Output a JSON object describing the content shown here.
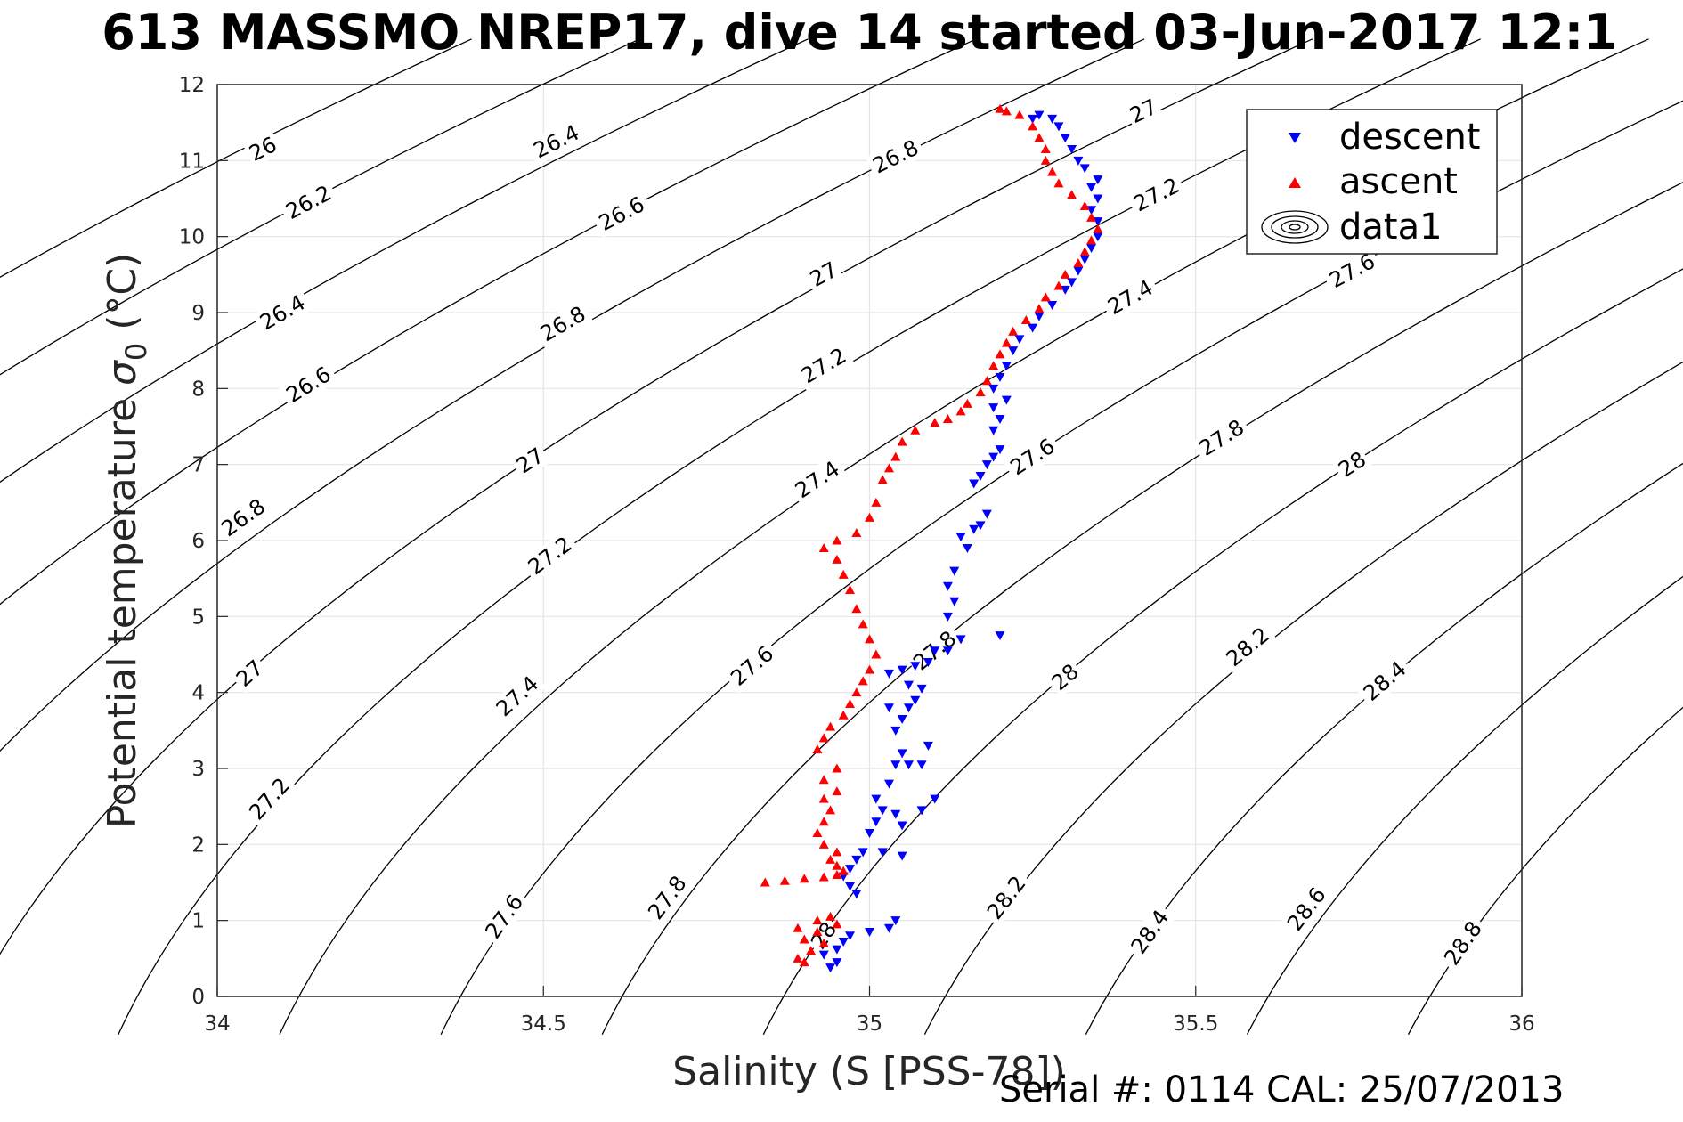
{
  "title": "613 MASSMO NREP17, dive 14 started 03-Jun-2017 12:1",
  "footer": "Serial #: 0114  CAL: 25/07/2013",
  "chart_data": {
    "type": "scatter",
    "xlabel": "Salinity (S [PSS-78])",
    "ylabel_main": "Potential temperature ",
    "ylabel_sigma": "σ",
    "ylabel_sub": "0",
    "ylabel_tail": " (°C)",
    "xlim": [
      34,
      36
    ],
    "ylim": [
      0,
      12
    ],
    "xticks": [
      "34",
      "34.5",
      "35",
      "35.5",
      "36"
    ],
    "yticks": [
      "0",
      "1",
      "2",
      "3",
      "4",
      "5",
      "6",
      "7",
      "8",
      "9",
      "10",
      "11",
      "12"
    ],
    "grid": true,
    "legend_position": "top-right",
    "legend": [
      {
        "label": "descent",
        "color": "#0000ff",
        "marker": "triangle-down"
      },
      {
        "label": "ascent",
        "color": "#ff0000",
        "marker": "triangle-up"
      },
      {
        "label": "data1",
        "color": "#000000",
        "marker": "contour"
      }
    ],
    "isopycnal_labels": [
      {
        "value": "26",
        "s": 34.07,
        "t": 11.15
      },
      {
        "value": "26.2",
        "s": 34.14,
        "t": 10.45
      },
      {
        "value": "26.4",
        "s": 34.52,
        "t": 11.25
      },
      {
        "value": "26.4",
        "s": 34.1,
        "t": 9.0
      },
      {
        "value": "26.6",
        "s": 34.14,
        "t": 8.05
      },
      {
        "value": "26.6",
        "s": 34.62,
        "t": 10.3
      },
      {
        "value": "26.8",
        "s": 34.53,
        "t": 8.85
      },
      {
        "value": "26.8",
        "s": 34.04,
        "t": 6.3
      },
      {
        "value": "26.8",
        "s": 35.04,
        "t": 11.05
      },
      {
        "value": "27",
        "s": 34.48,
        "t": 7.05
      },
      {
        "value": "27",
        "s": 34.05,
        "t": 4.25
      },
      {
        "value": "27",
        "s": 34.93,
        "t": 9.5
      },
      {
        "value": "27",
        "s": 35.42,
        "t": 11.65
      },
      {
        "value": "27.2",
        "s": 34.51,
        "t": 5.8
      },
      {
        "value": "27.2",
        "s": 34.93,
        "t": 8.3
      },
      {
        "value": "27.2",
        "s": 35.44,
        "t": 10.55
      },
      {
        "value": "27.2",
        "s": 34.08,
        "t": 2.6
      },
      {
        "value": "27.4",
        "s": 34.46,
        "t": 3.95
      },
      {
        "value": "27.4",
        "s": 34.92,
        "t": 6.8
      },
      {
        "value": "27.4",
        "s": 35.4,
        "t": 9.2
      },
      {
        "value": "27.6",
        "s": 34.44,
        "t": 1.05
      },
      {
        "value": "27.6",
        "s": 34.82,
        "t": 4.35
      },
      {
        "value": "27.6",
        "s": 35.25,
        "t": 7.1
      },
      {
        "value": "27.6",
        "s": 35.74,
        "t": 9.55
      },
      {
        "value": "27.8",
        "s": 34.69,
        "t": 1.3
      },
      {
        "value": "27.8",
        "s": 35.1,
        "t": 4.55
      },
      {
        "value": "27.8",
        "s": 35.54,
        "t": 7.35
      },
      {
        "value": "28",
        "s": 34.93,
        "t": 0.8
      },
      {
        "value": "28",
        "s": 35.3,
        "t": 4.2
      },
      {
        "value": "28",
        "s": 35.74,
        "t": 7.0
      },
      {
        "value": "28.2",
        "s": 35.21,
        "t": 1.3
      },
      {
        "value": "28.2",
        "s": 35.58,
        "t": 4.6
      },
      {
        "value": "28.4",
        "s": 35.43,
        "t": 0.85
      },
      {
        "value": "28.4",
        "s": 35.79,
        "t": 4.15
      },
      {
        "value": "28.6",
        "s": 35.67,
        "t": 1.15
      },
      {
        "value": "28.8",
        "s": 35.91,
        "t": 0.7
      }
    ],
    "series": [
      {
        "name": "descent",
        "color": "#0000ff",
        "points": [
          [
            34.94,
            0.38
          ],
          [
            34.95,
            0.45
          ],
          [
            34.93,
            0.55
          ],
          [
            34.95,
            0.62
          ],
          [
            34.96,
            0.72
          ],
          [
            34.97,
            0.8
          ],
          [
            35.0,
            0.85
          ],
          [
            35.03,
            0.9
          ],
          [
            35.04,
            1.0
          ],
          [
            34.98,
            1.35
          ],
          [
            34.97,
            1.45
          ],
          [
            34.96,
            1.58
          ],
          [
            34.97,
            1.68
          ],
          [
            34.98,
            1.8
          ],
          [
            34.99,
            1.9
          ],
          [
            35.02,
            1.9
          ],
          [
            35.05,
            1.85
          ],
          [
            35.0,
            2.15
          ],
          [
            35.01,
            2.3
          ],
          [
            35.02,
            2.45
          ],
          [
            35.01,
            2.6
          ],
          [
            35.04,
            2.4
          ],
          [
            35.05,
            2.25
          ],
          [
            35.08,
            2.45
          ],
          [
            35.1,
            2.6
          ],
          [
            35.03,
            2.8
          ],
          [
            35.04,
            3.05
          ],
          [
            35.06,
            3.05
          ],
          [
            35.08,
            3.05
          ],
          [
            35.05,
            3.2
          ],
          [
            35.09,
            3.3
          ],
          [
            35.04,
            3.5
          ],
          [
            35.05,
            3.65
          ],
          [
            35.03,
            3.8
          ],
          [
            35.06,
            3.8
          ],
          [
            35.07,
            3.9
          ],
          [
            35.08,
            4.05
          ],
          [
            35.06,
            4.1
          ],
          [
            35.03,
            4.25
          ],
          [
            35.05,
            4.3
          ],
          [
            35.07,
            4.35
          ],
          [
            35.09,
            4.4
          ],
          [
            35.1,
            4.55
          ],
          [
            35.12,
            4.55
          ],
          [
            35.14,
            4.7
          ],
          [
            35.2,
            4.75
          ],
          [
            35.12,
            5.0
          ],
          [
            35.13,
            5.2
          ],
          [
            35.12,
            5.4
          ],
          [
            35.13,
            5.6
          ],
          [
            35.15,
            5.9
          ],
          [
            35.14,
            6.05
          ],
          [
            35.16,
            6.15
          ],
          [
            35.17,
            6.2
          ],
          [
            35.18,
            6.35
          ],
          [
            35.16,
            6.75
          ],
          [
            35.17,
            6.85
          ],
          [
            35.18,
            7.0
          ],
          [
            35.19,
            7.1
          ],
          [
            35.2,
            7.2
          ],
          [
            35.19,
            7.45
          ],
          [
            35.2,
            7.6
          ],
          [
            35.19,
            7.75
          ],
          [
            35.21,
            7.85
          ],
          [
            35.19,
            8.0
          ],
          [
            35.2,
            8.15
          ],
          [
            35.21,
            8.3
          ],
          [
            35.22,
            8.5
          ],
          [
            35.23,
            8.65
          ],
          [
            35.25,
            8.8
          ],
          [
            35.26,
            8.95
          ],
          [
            35.28,
            9.1
          ],
          [
            35.3,
            9.3
          ],
          [
            35.31,
            9.4
          ],
          [
            35.32,
            9.55
          ],
          [
            35.33,
            9.7
          ],
          [
            35.34,
            9.85
          ],
          [
            35.35,
            10.0
          ],
          [
            35.35,
            10.2
          ],
          [
            35.34,
            10.35
          ],
          [
            35.35,
            10.5
          ],
          [
            35.34,
            10.65
          ],
          [
            35.35,
            10.75
          ],
          [
            35.33,
            10.9
          ],
          [
            35.32,
            11.0
          ],
          [
            35.31,
            11.15
          ],
          [
            35.3,
            11.3
          ],
          [
            35.29,
            11.45
          ],
          [
            35.28,
            11.55
          ],
          [
            35.26,
            11.6
          ],
          [
            35.25,
            11.55
          ]
        ]
      },
      {
        "name": "ascent",
        "color": "#ff0000",
        "points": [
          [
            34.9,
            0.45
          ],
          [
            34.89,
            0.5
          ],
          [
            34.91,
            0.6
          ],
          [
            34.93,
            0.7
          ],
          [
            34.9,
            0.75
          ],
          [
            34.92,
            0.85
          ],
          [
            34.89,
            0.9
          ],
          [
            34.95,
            0.95
          ],
          [
            34.92,
            1.0
          ],
          [
            34.94,
            1.05
          ],
          [
            34.84,
            1.5
          ],
          [
            34.87,
            1.52
          ],
          [
            34.9,
            1.55
          ],
          [
            34.93,
            1.57
          ],
          [
            34.95,
            1.6
          ],
          [
            34.96,
            1.65
          ],
          [
            34.95,
            1.72
          ],
          [
            34.94,
            1.8
          ],
          [
            34.95,
            1.9
          ],
          [
            34.93,
            2.0
          ],
          [
            34.92,
            2.15
          ],
          [
            34.93,
            2.3
          ],
          [
            34.94,
            2.45
          ],
          [
            34.93,
            2.6
          ],
          [
            34.95,
            2.7
          ],
          [
            34.93,
            2.85
          ],
          [
            34.95,
            3.0
          ],
          [
            34.92,
            3.25
          ],
          [
            34.93,
            3.4
          ],
          [
            34.94,
            3.55
          ],
          [
            34.96,
            3.7
          ],
          [
            34.97,
            3.85
          ],
          [
            34.98,
            4.0
          ],
          [
            34.99,
            4.15
          ],
          [
            35.0,
            4.3
          ],
          [
            35.01,
            4.5
          ],
          [
            35.0,
            4.7
          ],
          [
            34.99,
            4.9
          ],
          [
            34.98,
            5.1
          ],
          [
            34.97,
            5.35
          ],
          [
            34.96,
            5.55
          ],
          [
            34.95,
            5.75
          ],
          [
            34.93,
            5.9
          ],
          [
            34.95,
            6.0
          ],
          [
            34.98,
            6.1
          ],
          [
            35.0,
            6.3
          ],
          [
            35.01,
            6.5
          ],
          [
            35.02,
            6.8
          ],
          [
            35.03,
            6.95
          ],
          [
            35.04,
            7.1
          ],
          [
            35.05,
            7.3
          ],
          [
            35.07,
            7.45
          ],
          [
            35.1,
            7.55
          ],
          [
            35.12,
            7.6
          ],
          [
            35.14,
            7.7
          ],
          [
            35.15,
            7.8
          ],
          [
            35.17,
            7.95
          ],
          [
            35.18,
            8.1
          ],
          [
            35.19,
            8.3
          ],
          [
            35.2,
            8.45
          ],
          [
            35.21,
            8.6
          ],
          [
            35.22,
            8.75
          ],
          [
            35.24,
            8.9
          ],
          [
            35.26,
            9.05
          ],
          [
            35.27,
            9.2
          ],
          [
            35.29,
            9.35
          ],
          [
            35.3,
            9.5
          ],
          [
            35.32,
            9.65
          ],
          [
            35.33,
            9.8
          ],
          [
            35.34,
            9.95
          ],
          [
            35.35,
            10.1
          ],
          [
            35.34,
            10.25
          ],
          [
            35.33,
            10.4
          ],
          [
            35.31,
            10.55
          ],
          [
            35.29,
            10.7
          ],
          [
            35.28,
            10.85
          ],
          [
            35.27,
            11.0
          ],
          [
            35.27,
            11.15
          ],
          [
            35.26,
            11.3
          ],
          [
            35.25,
            11.45
          ],
          [
            35.23,
            11.6
          ],
          [
            35.21,
            11.65
          ],
          [
            35.2,
            11.68
          ]
        ]
      }
    ]
  }
}
